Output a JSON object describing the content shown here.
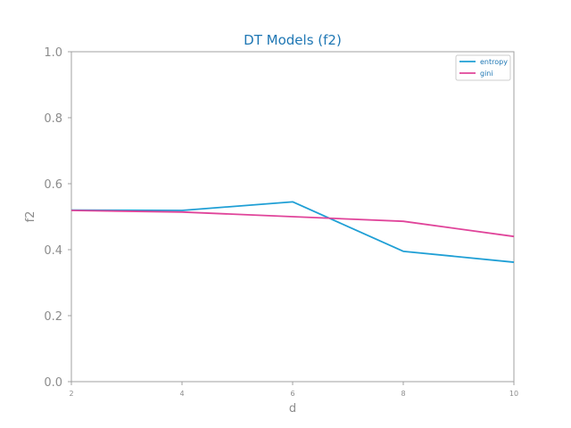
{
  "colors": {
    "title": "#1f77b4",
    "axis_text": "#8c8c8c",
    "frame": "#a0a0a0",
    "legend_border": "#cccccc",
    "entropy": "#1f9fd5",
    "gini": "#e0449a"
  },
  "chart_data": {
    "type": "line",
    "title": "DT Models (f2)",
    "xlabel": "d",
    "ylabel": "f2",
    "x": [
      2,
      4,
      6,
      8,
      10
    ],
    "xticks": [
      "2",
      "4",
      "6",
      "8",
      "10"
    ],
    "xlim": [
      2,
      10
    ],
    "ylim": [
      0.0,
      1.0
    ],
    "yticks": [
      "0.0",
      "0.2",
      "0.4",
      "0.6",
      "0.8",
      "1.0"
    ],
    "ytick_values": [
      0.0,
      0.2,
      0.4,
      0.6,
      0.8,
      1.0
    ],
    "grid": false,
    "legend_position": "top-right",
    "series": [
      {
        "name": "entropy",
        "color": "#1f9fd5",
        "values": [
          0.52,
          0.519,
          0.545,
          0.395,
          0.362
        ]
      },
      {
        "name": "gini",
        "color": "#e0449a",
        "values": [
          0.519,
          0.514,
          0.5,
          0.486,
          0.44
        ]
      }
    ]
  }
}
